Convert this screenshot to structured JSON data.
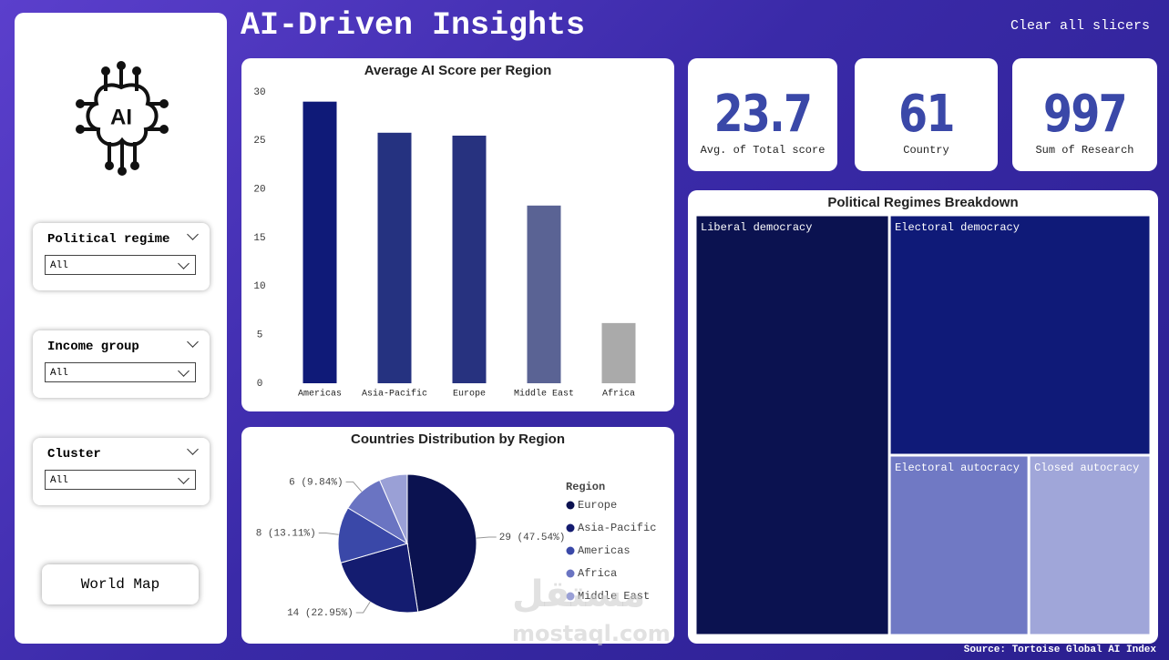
{
  "header": {
    "title": "AI-Driven Insights",
    "clear_button": "Clear all slicers",
    "logo_text": "AI"
  },
  "slicers": [
    {
      "label": "Political regime",
      "selection": "All"
    },
    {
      "label": "Income group",
      "selection": "All"
    },
    {
      "label": "Cluster",
      "selection": "All"
    }
  ],
  "world_map_button": "World Map",
  "cards": [
    {
      "value": 23.7,
      "label": "Avg. of Total score"
    },
    {
      "value": 61,
      "label": "Country"
    },
    {
      "value": 997,
      "label": "Sum of Research"
    }
  ],
  "source": "Source: Tortoise Global AI Index",
  "watermark": [
    "مستقل",
    "mostaql.com"
  ],
  "chart_data": [
    {
      "type": "bar",
      "title": "Average AI Score per Region",
      "categories": [
        "Americas",
        "Asia-Pacific",
        "Europe",
        "Middle East",
        "Africa"
      ],
      "values": [
        29,
        25.8,
        25.5,
        18.3,
        6.2
      ],
      "colors": [
        "#0f1a78",
        "#253280",
        "#27327f",
        "#5a6394",
        "#aaaaaa"
      ],
      "ylim": [
        0,
        30
      ],
      "yticks": [
        0,
        5,
        10,
        15,
        20,
        25,
        30
      ],
      "grid": false
    },
    {
      "type": "pie",
      "title": "Countries Distribution by Region",
      "legend_title": "Region",
      "categories": [
        "Europe",
        "Asia-Pacific",
        "Americas",
        "Africa",
        "Middle East"
      ],
      "values": [
        29,
        14,
        8,
        6,
        4
      ],
      "value_labels": [
        "29 (47.54%)",
        "14 (22.95%)",
        "8 (13.11%)",
        "6 (9.84%)",
        null
      ],
      "colors": [
        "#0b1250",
        "#141c70",
        "#3a48a8",
        "#6a74c2",
        "#9aa0d6"
      ],
      "legend": "right"
    },
    {
      "type": "treemap",
      "title": "Political Regimes Breakdown",
      "categories": [
        "Liberal democracy",
        "Electoral democracy",
        "Electoral autocracy",
        "Closed autocracy"
      ],
      "values": [
        26,
        20,
        8,
        7
      ],
      "colors": [
        "#0b1250",
        "#0f1a78",
        "#7079c4",
        "#a0a6d9"
      ]
    }
  ]
}
